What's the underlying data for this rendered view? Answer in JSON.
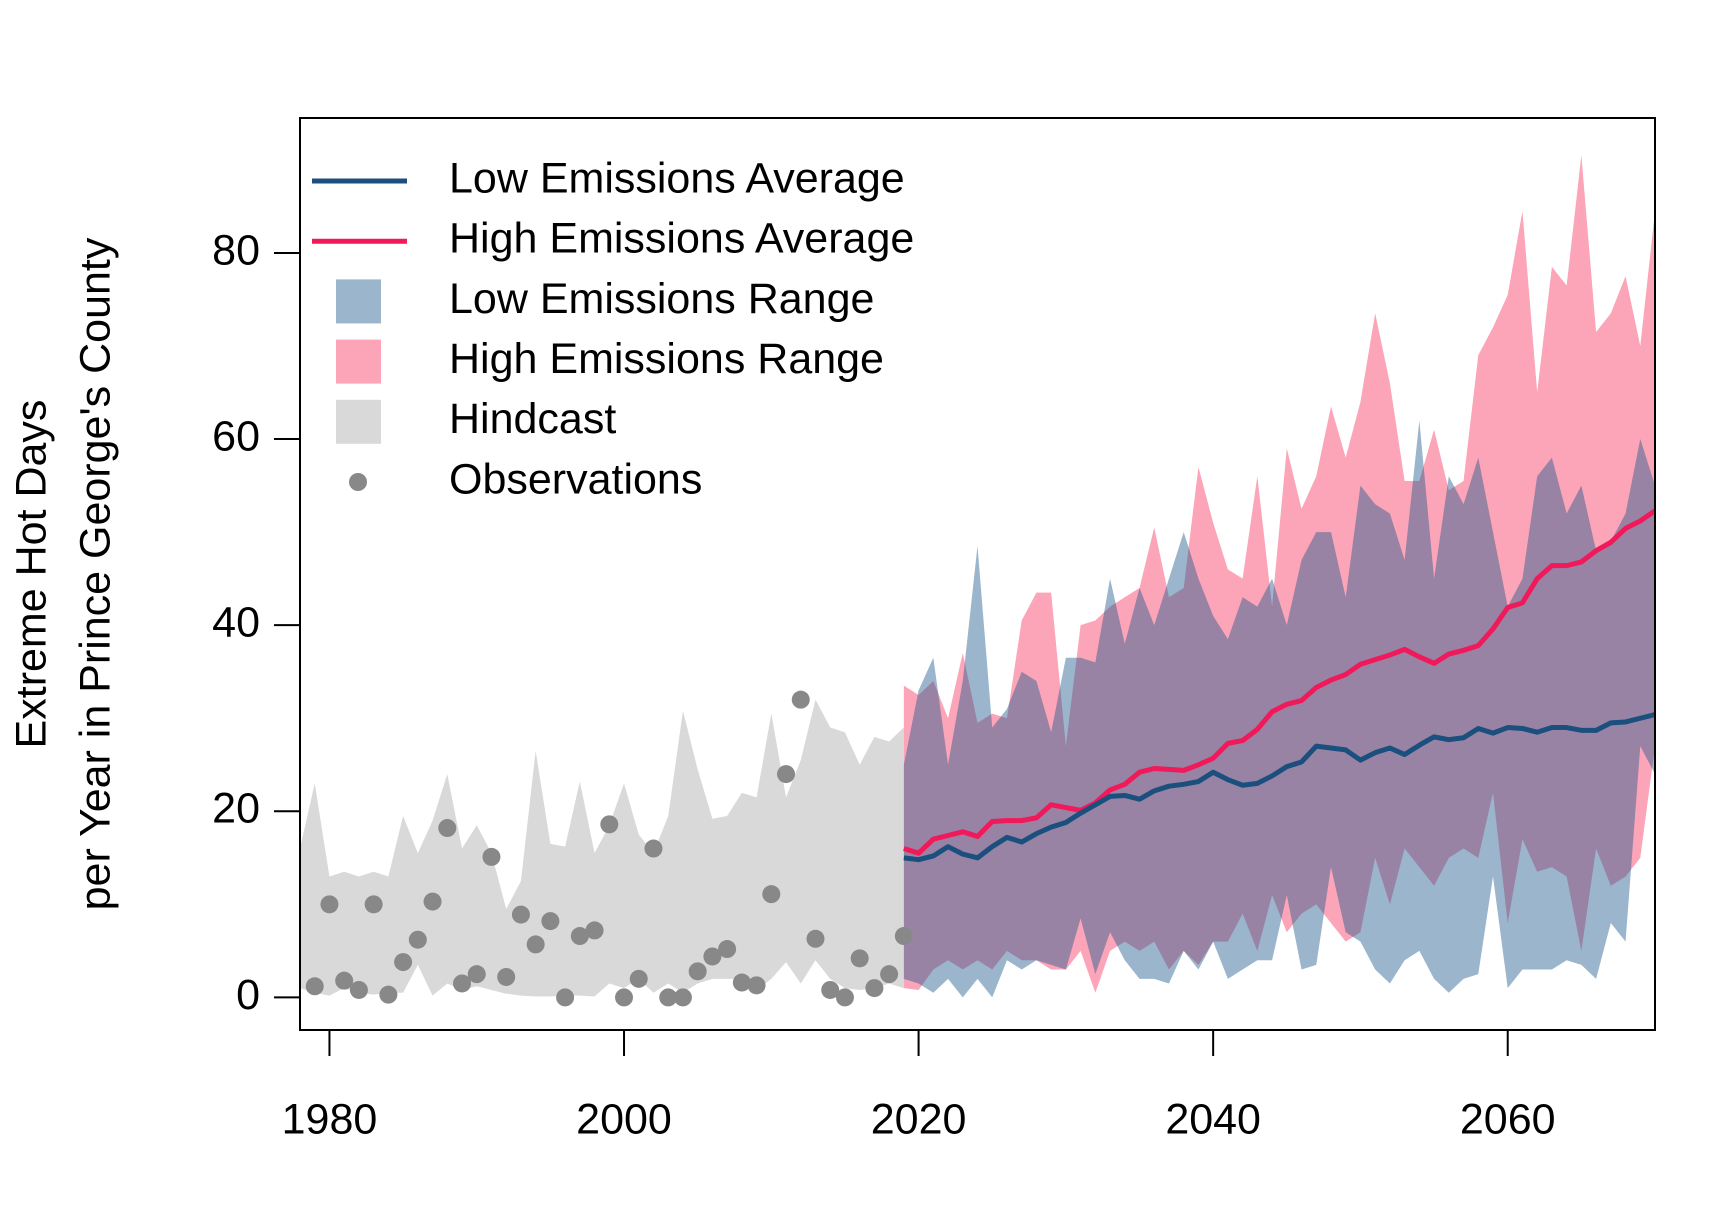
{
  "chart_data": {
    "type": "line",
    "ylabel": [
      "Extreme Hot Days",
      "per Year in Prince George's County"
    ],
    "xlim": [
      1978,
      2070
    ],
    "ylim": [
      -3.5,
      94.5
    ],
    "xticks": [
      1980,
      2000,
      2020,
      2040,
      2060
    ],
    "yticks": [
      0,
      20,
      40,
      60,
      80
    ],
    "legend": "top-left",
    "series": [
      {
        "name": "Low Emissions Average",
        "type": "line",
        "color": "#1b4f7e",
        "x": [
          2019,
          2020,
          2021,
          2022,
          2023,
          2024,
          2025,
          2026,
          2027,
          2028,
          2029,
          2030,
          2031,
          2032,
          2033,
          2034,
          2035,
          2036,
          2037,
          2038,
          2039,
          2040,
          2041,
          2042,
          2043,
          2044,
          2045,
          2046,
          2047,
          2048,
          2049,
          2050,
          2051,
          2052,
          2053,
          2054,
          2055,
          2056,
          2057,
          2058,
          2059,
          2060,
          2061,
          2062,
          2063,
          2064,
          2065,
          2066,
          2067,
          2068,
          2069,
          2070
        ],
        "values": [
          15,
          14.8,
          15.2,
          16.2,
          15.4,
          15,
          16.2,
          17.2,
          16.7,
          17.6,
          18.3,
          18.8,
          19.8,
          20.7,
          21.6,
          21.7,
          21.3,
          22.2,
          22.7,
          22.9,
          23.2,
          24.2,
          23.4,
          22.8,
          23,
          23.8,
          24.8,
          25.3,
          27,
          26.8,
          26.6,
          25.5,
          26.3,
          26.8,
          26.1,
          27.1,
          28,
          27.7,
          27.9,
          28.9,
          28.4,
          29,
          28.9,
          28.5,
          29,
          29,
          28.7,
          28.7,
          29.5,
          29.6,
          30,
          30.4
        ]
      },
      {
        "name": "High Emissions Average",
        "type": "line",
        "color": "#f0195a",
        "x": [
          2019,
          2020,
          2021,
          2022,
          2023,
          2024,
          2025,
          2026,
          2027,
          2028,
          2029,
          2030,
          2031,
          2032,
          2033,
          2034,
          2035,
          2036,
          2037,
          2038,
          2039,
          2040,
          2041,
          2042,
          2043,
          2044,
          2045,
          2046,
          2047,
          2048,
          2049,
          2050,
          2051,
          2052,
          2053,
          2054,
          2055,
          2056,
          2057,
          2058,
          2059,
          2060,
          2061,
          2062,
          2063,
          2064,
          2065,
          2066,
          2067,
          2068,
          2069,
          2070
        ],
        "values": [
          16,
          15.5,
          17,
          17.4,
          17.8,
          17.3,
          18.9,
          19,
          19,
          19.3,
          20.7,
          20.4,
          20.1,
          20.9,
          22.3,
          22.9,
          24.2,
          24.6,
          24.5,
          24.4,
          25,
          25.7,
          27.3,
          27.6,
          28.8,
          30.7,
          31.5,
          31.9,
          33.3,
          34.1,
          34.7,
          35.8,
          36.3,
          36.8,
          37.4,
          36.6,
          35.9,
          36.9,
          37.3,
          37.8,
          39.6,
          41.9,
          42.4,
          45,
          46.4,
          46.4,
          46.8,
          48,
          48.9,
          50.4,
          51.2,
          52.3
        ]
      },
      {
        "name": "Low Emissions Range",
        "type": "band",
        "color": "#1f5b8e",
        "opacity": 0.45,
        "x": [
          2019,
          2020,
          2021,
          2022,
          2023,
          2024,
          2025,
          2026,
          2027,
          2028,
          2029,
          2030,
          2031,
          2032,
          2033,
          2034,
          2035,
          2036,
          2037,
          2038,
          2039,
          2040,
          2041,
          2042,
          2043,
          2044,
          2045,
          2046,
          2047,
          2048,
          2049,
          2050,
          2051,
          2052,
          2053,
          2054,
          2055,
          2056,
          2057,
          2058,
          2059,
          2060,
          2061,
          2062,
          2063,
          2064,
          2065,
          2066,
          2067,
          2068,
          2069,
          2070
        ],
        "upper": [
          25,
          33,
          36.5,
          25,
          34,
          48.5,
          29,
          31,
          35,
          34,
          28.5,
          36.5,
          36.5,
          36,
          45,
          38,
          44,
          40,
          45,
          50,
          45,
          41,
          38.5,
          43,
          42,
          45,
          40,
          47,
          50,
          50,
          43,
          55,
          53,
          52,
          47,
          62,
          45,
          56,
          53,
          58,
          50,
          42,
          45,
          56,
          58,
          52,
          55,
          48,
          49,
          52,
          60,
          55
        ],
        "lower": [
          2,
          1.5,
          0.5,
          2,
          0,
          2,
          0,
          4,
          3,
          4,
          3.5,
          3,
          8.5,
          2.5,
          7,
          4,
          2,
          2,
          1.5,
          5,
          3,
          6,
          2,
          3,
          4,
          4,
          11,
          3,
          3.5,
          14,
          7,
          6,
          3,
          1.5,
          4,
          5,
          2,
          0.5,
          2,
          2.5,
          13,
          1,
          3,
          3,
          3,
          4,
          3.5,
          2,
          8,
          6,
          27,
          24
        ]
      },
      {
        "name": "High Emissions Range",
        "type": "band",
        "color": "#fca4b8",
        "opacity": 1,
        "x": [
          2019,
          2020,
          2021,
          2022,
          2023,
          2024,
          2025,
          2026,
          2027,
          2028,
          2029,
          2030,
          2031,
          2032,
          2033,
          2034,
          2035,
          2036,
          2037,
          2038,
          2039,
          2040,
          2041,
          2042,
          2043,
          2044,
          2045,
          2046,
          2047,
          2048,
          2049,
          2050,
          2051,
          2052,
          2053,
          2054,
          2055,
          2056,
          2057,
          2058,
          2059,
          2060,
          2061,
          2062,
          2063,
          2064,
          2065,
          2066,
          2067,
          2068,
          2069,
          2070
        ],
        "upper": [
          33.5,
          32.5,
          34,
          30,
          37,
          29.5,
          30.5,
          30,
          40.5,
          43.5,
          43.5,
          27,
          40,
          40.5,
          42,
          43,
          44,
          50.5,
          43,
          44,
          57,
          51,
          46,
          45,
          56,
          42,
          59,
          52.5,
          56,
          63.5,
          58,
          64,
          73.5,
          66,
          55.5,
          55.5,
          61,
          54.5,
          55.5,
          69,
          72,
          75.5,
          84.5,
          65,
          78.5,
          76.5,
          90.5,
          71.5,
          73.5,
          77.5,
          70,
          84.5
        ],
        "lower": [
          1,
          0.8,
          3,
          4,
          3,
          4,
          3,
          5,
          4,
          4,
          3,
          3,
          5,
          0.5,
          5,
          6,
          5,
          6,
          3,
          5,
          3.5,
          6,
          6,
          9,
          5,
          11,
          7,
          9,
          10,
          8,
          6,
          7,
          15,
          10,
          16,
          14,
          12,
          15,
          16,
          15,
          22,
          8,
          17,
          13.5,
          14,
          13,
          5,
          16,
          12,
          13,
          15,
          27
        ]
      },
      {
        "name": "Hindcast",
        "type": "band",
        "color": "#d9d9d9",
        "opacity": 1,
        "x": [
          1978,
          1979,
          1980,
          1981,
          1982,
          1983,
          1984,
          1985,
          1986,
          1987,
          1988,
          1989,
          1990,
          1991,
          1992,
          1993,
          1994,
          1995,
          1996,
          1997,
          1998,
          1999,
          2000,
          2001,
          2002,
          2003,
          2004,
          2005,
          2006,
          2007,
          2008,
          2009,
          2010,
          2011,
          2012,
          2013,
          2014,
          2015,
          2016,
          2017,
          2018,
          2019
        ],
        "upper": [
          16,
          23,
          13,
          13.5,
          13,
          13.5,
          13,
          19.5,
          15.5,
          19,
          24,
          16,
          18.5,
          15.5,
          9.5,
          12.5,
          26.5,
          16.5,
          16.2,
          23.2,
          15.5,
          18.5,
          23,
          17.5,
          15.5,
          19.5,
          30.8,
          24.5,
          19.2,
          19.5,
          22,
          21.5,
          30.5,
          21.5,
          25.5,
          32,
          29,
          28.5,
          25,
          28,
          27.5,
          29
        ],
        "lower": [
          1,
          0.5,
          0.2,
          1,
          0.5,
          0.3,
          0.5,
          0.5,
          3.5,
          0.2,
          1.5,
          0.8,
          1.2,
          0.8,
          0.4,
          0.2,
          0.1,
          0.1,
          0.2,
          0.2,
          0.1,
          1.5,
          1,
          2,
          0.5,
          1.5,
          0.5,
          1.5,
          2,
          2,
          2,
          0.8,
          2,
          3.8,
          1.5,
          4,
          2,
          1,
          0.8,
          1,
          1.5,
          1
        ]
      },
      {
        "name": "Observations",
        "type": "scatter",
        "color": "#888888",
        "x": [
          1979,
          1980,
          1981,
          1982,
          1983,
          1984,
          1985,
          1986,
          1987,
          1988,
          1989,
          1990,
          1991,
          1992,
          1993,
          1994,
          1995,
          1996,
          1997,
          1998,
          1999,
          2000,
          2001,
          2002,
          2003,
          2004,
          2005,
          2006,
          2007,
          2008,
          2009,
          2010,
          2011,
          2012,
          2013,
          2014,
          2015,
          2016,
          2017,
          2018,
          2019
        ],
        "values": [
          1.2,
          10,
          1.8,
          0.8,
          10,
          0.3,
          3.8,
          6.2,
          10.3,
          18.2,
          1.5,
          2.5,
          15.1,
          2.2,
          8.9,
          5.7,
          8.2,
          0,
          6.6,
          7.2,
          18.6,
          0,
          2,
          16,
          0,
          0,
          2.8,
          4.4,
          5.2,
          1.6,
          1.3,
          11.1,
          24,
          32,
          6.3,
          0.8,
          0,
          4.2,
          1,
          2.5,
          6.6
        ]
      }
    ]
  }
}
